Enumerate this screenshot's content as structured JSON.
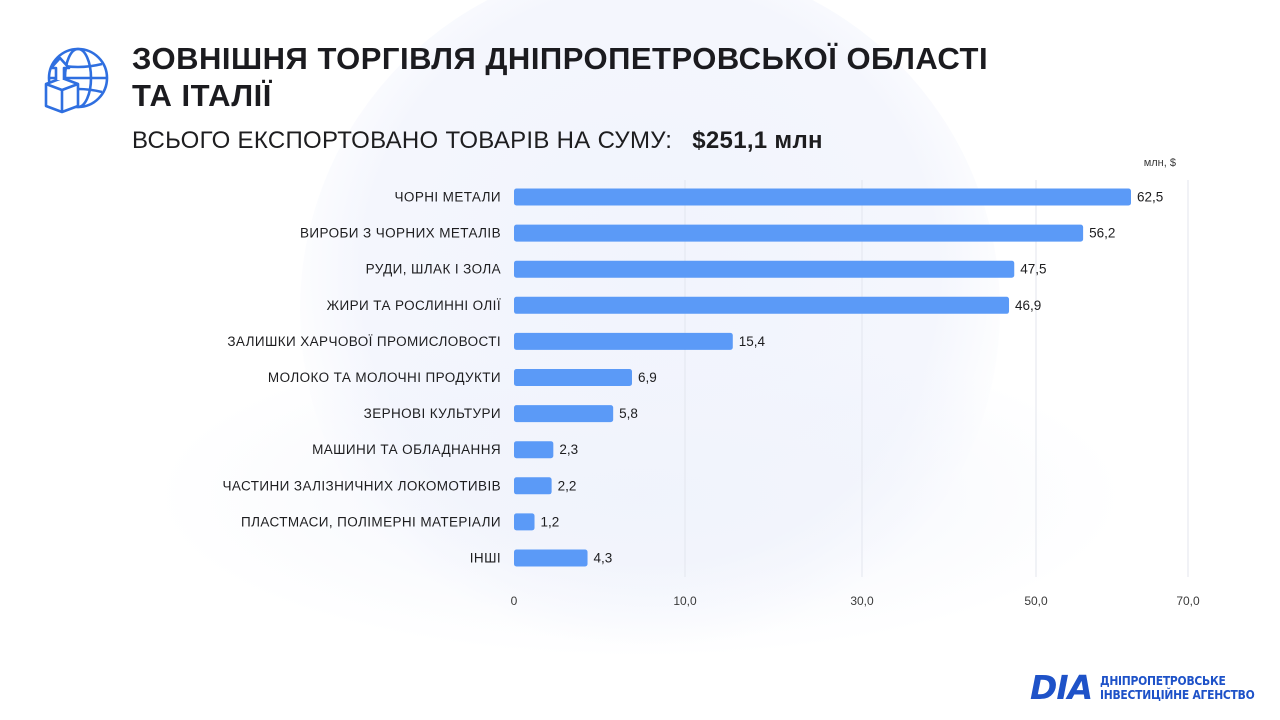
{
  "header": {
    "title_line1": "ЗОВНІШНЯ ТОРГІВЛЯ ДНІПРОПЕТРОВСЬКОЇ ОБЛАСТІ",
    "title_line2": "ТА ІТАЛІЇ",
    "subtitle": "ВСЬОГО ЕКСПОРТОВАНО ТОВАРІВ НА СУМУ:",
    "total": "$251,1 млн"
  },
  "footer": {
    "logo_mark": "DIA",
    "logo_line1": "ДНІПРОПЕТРОВСЬКЕ",
    "logo_line2": "ІНВЕСТИЦІЙНЕ АГЕНСТВО",
    "brand_color": "#1e52c8"
  },
  "chart_data": {
    "type": "bar",
    "orientation": "horizontal",
    "unit_label": "млн, $",
    "bar_color": "#5b9af7",
    "categories": [
      "ЧОРНІ МЕТАЛИ",
      "ВИРОБИ З ЧОРНИХ МЕТАЛІВ",
      "РУДИ, ШЛАК І ЗОЛА",
      "ЖИРИ ТА РОСЛИННІ ОЛІЇ",
      "ЗАЛИШКИ ХАРЧОВОЇ ПРОМИСЛОВОСТІ",
      "МОЛОКО ТА МОЛОЧНІ ПРОДУКТИ",
      "ЗЕРНОВІ КУЛЬТУРИ",
      "МАШИНИ ТА ОБЛАДНАННЯ",
      "ЧАСТИНИ ЗАЛІЗНИЧНИХ ЛОКОМОТИВІВ",
      "ПЛАСТМАСИ, ПОЛІМЕРНІ МАТЕРІАЛИ",
      "ІНШІ"
    ],
    "values": [
      62.5,
      56.2,
      47.5,
      46.9,
      15.4,
      6.9,
      5.8,
      2.3,
      2.2,
      1.2,
      4.3
    ],
    "value_labels": [
      "62,5",
      "56,2",
      "47,5",
      "46,9",
      "15,4",
      "6,9",
      "5,8",
      "2,3",
      "2,2",
      "1,2",
      "4,3"
    ],
    "x_ticks": [
      0,
      10,
      30,
      50,
      70
    ],
    "x_tick_labels": [
      "0",
      "10,0",
      "30,0",
      "50,0",
      "70,0"
    ],
    "grid": true
  }
}
